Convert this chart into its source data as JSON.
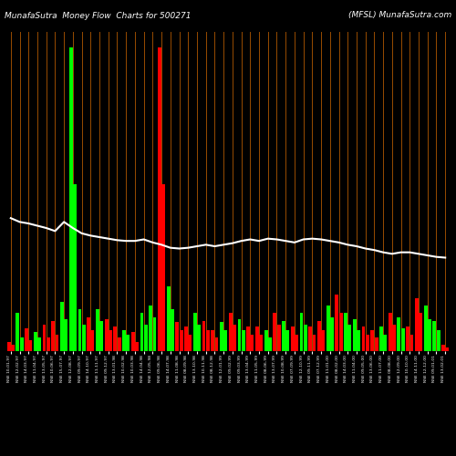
{
  "title_left": "MunafaSutra  Money Flow  Charts for 500271",
  "title_right": "(MFSL) MunafaSutra.com",
  "background_color": "#000000",
  "n_groups": 50,
  "bar_width": 0.4,
  "bar_gap": 0.45,
  "green_color": "#00ff00",
  "red_color": "#ff0000",
  "orange_line_color": "#b35900",
  "line_color": "#ffffff",
  "special_green_idx": 7,
  "special_red_idx": 17,
  "bar_colors": [
    "red",
    "green",
    "red",
    "green",
    "red",
    "red",
    "green",
    "green",
    "green",
    "red",
    "green",
    "red",
    "red",
    "green",
    "red",
    "green",
    "green",
    "red",
    "green",
    "red",
    "red",
    "green",
    "red",
    "red",
    "green",
    "red",
    "green",
    "red",
    "red",
    "green",
    "red",
    "green",
    "red",
    "green",
    "red",
    "red",
    "green",
    "red",
    "green",
    "green",
    "red",
    "red",
    "green",
    "red",
    "green",
    "red",
    "red",
    "green",
    "green",
    "red"
  ],
  "bar_tall": [
    12,
    50,
    30,
    25,
    35,
    40,
    65,
    400,
    55,
    45,
    55,
    42,
    32,
    28,
    25,
    50,
    60,
    400,
    85,
    38,
    32,
    50,
    40,
    28,
    38,
    50,
    42,
    32,
    32,
    28,
    50,
    40,
    32,
    50,
    32,
    40,
    60,
    75,
    50,
    42,
    32,
    28,
    32,
    50,
    45,
    32,
    70,
    60,
    40,
    8
  ],
  "bar_short": [
    8,
    18,
    14,
    18,
    18,
    22,
    42,
    220,
    35,
    28,
    40,
    28,
    18,
    22,
    12,
    35,
    45,
    220,
    55,
    28,
    22,
    35,
    28,
    18,
    28,
    35,
    28,
    22,
    22,
    18,
    35,
    28,
    22,
    35,
    22,
    28,
    45,
    50,
    35,
    28,
    22,
    18,
    22,
    35,
    30,
    22,
    50,
    42,
    28,
    5
  ],
  "line_values": [
    175,
    170,
    168,
    165,
    162,
    158,
    170,
    162,
    155,
    152,
    150,
    148,
    146,
    145,
    145,
    147,
    143,
    140,
    136,
    135,
    136,
    138,
    140,
    138,
    140,
    142,
    145,
    147,
    145,
    148,
    147,
    145,
    143,
    147,
    148,
    147,
    145,
    143,
    140,
    138,
    135,
    133,
    130,
    128,
    130,
    130,
    128,
    126,
    124,
    123
  ],
  "x_labels": [
    "NSE 10-01-97",
    "NSE 12-02-97",
    "NSE 14-03-97",
    "NSE 11-04-97",
    "NSE 13-05-97",
    "NSE 10-06-97",
    "NSE 15-07-97",
    "NSE 12-08-97",
    "NSE 09-09-97",
    "NSE 14-10-97",
    "NSE 11-11-97",
    "NSE 09-12-97",
    "NSE 13-01-98",
    "NSE 10-02-98",
    "NSE 10-03-98",
    "NSE 14-04-98",
    "NSE 12-05-98",
    "NSE 09-06-98",
    "NSE 14-07-98",
    "NSE 11-08-98",
    "NSE 08-09-98",
    "NSE 13-10-98",
    "NSE 10-11-98",
    "NSE 08-12-98",
    "NSE 12-01-99",
    "NSE 09-02-99",
    "NSE 09-03-99",
    "NSE 13-04-99",
    "NSE 11-05-99",
    "NSE 08-06-99",
    "NSE 13-07-99",
    "NSE 10-08-99",
    "NSE 07-09-99",
    "NSE 12-10-99",
    "NSE 09-11-99",
    "NSE 07-12-99",
    "NSE 11-01-00",
    "NSE 08-02-00",
    "NSE 14-03-00",
    "NSE 11-04-00",
    "NSE 09-05-00",
    "NSE 13-06-00",
    "NSE 11-07-00",
    "NSE 08-08-00",
    "NSE 12-09-00",
    "NSE 10-10-00",
    "NSE 14-11-00",
    "NSE 12-12-00",
    "NSE 09-01-01",
    "NSE 13-02-01"
  ]
}
